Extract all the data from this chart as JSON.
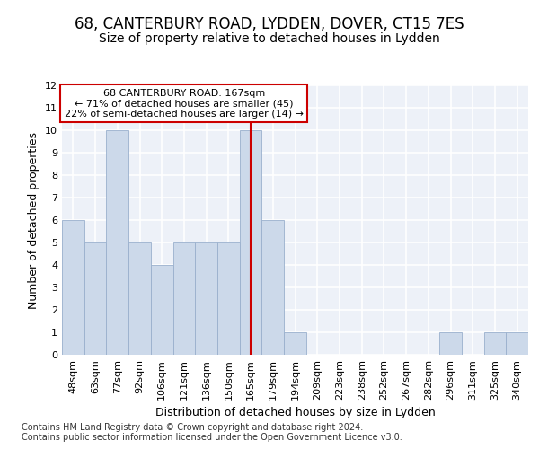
{
  "title1": "68, CANTERBURY ROAD, LYDDEN, DOVER, CT15 7ES",
  "title2": "Size of property relative to detached houses in Lydden",
  "xlabel": "Distribution of detached houses by size in Lydden",
  "ylabel": "Number of detached properties",
  "categories": [
    "48sqm",
    "63sqm",
    "77sqm",
    "92sqm",
    "106sqm",
    "121sqm",
    "136sqm",
    "150sqm",
    "165sqm",
    "179sqm",
    "194sqm",
    "209sqm",
    "223sqm",
    "238sqm",
    "252sqm",
    "267sqm",
    "282sqm",
    "296sqm",
    "311sqm",
    "325sqm",
    "340sqm"
  ],
  "values": [
    6,
    5,
    10,
    5,
    4,
    5,
    5,
    5,
    10,
    6,
    1,
    0,
    0,
    0,
    0,
    0,
    0,
    1,
    0,
    1,
    1
  ],
  "bar_color": "#ccd9ea",
  "bar_edge_color": "#9ab0cd",
  "highlight_index": 8,
  "highlight_line_color": "#cc0000",
  "annotation_box_color": "#ffffff",
  "annotation_border_color": "#cc0000",
  "annotation_text_line1": "68 CANTERBURY ROAD: 167sqm",
  "annotation_text_line2": "← 71% of detached houses are smaller (45)",
  "annotation_text_line3": "22% of semi-detached houses are larger (14) →",
  "ylim": [
    0,
    12
  ],
  "yticks": [
    0,
    1,
    2,
    3,
    4,
    5,
    6,
    7,
    8,
    9,
    10,
    11,
    12
  ],
  "footer1": "Contains HM Land Registry data © Crown copyright and database right 2024.",
  "footer2": "Contains public sector information licensed under the Open Government Licence v3.0.",
  "bg_color": "#edf1f8",
  "grid_color": "#ffffff",
  "title_fontsize": 12,
  "subtitle_fontsize": 10,
  "axis_label_fontsize": 9,
  "tick_fontsize": 8,
  "footer_fontsize": 7,
  "ann_fontsize": 8
}
